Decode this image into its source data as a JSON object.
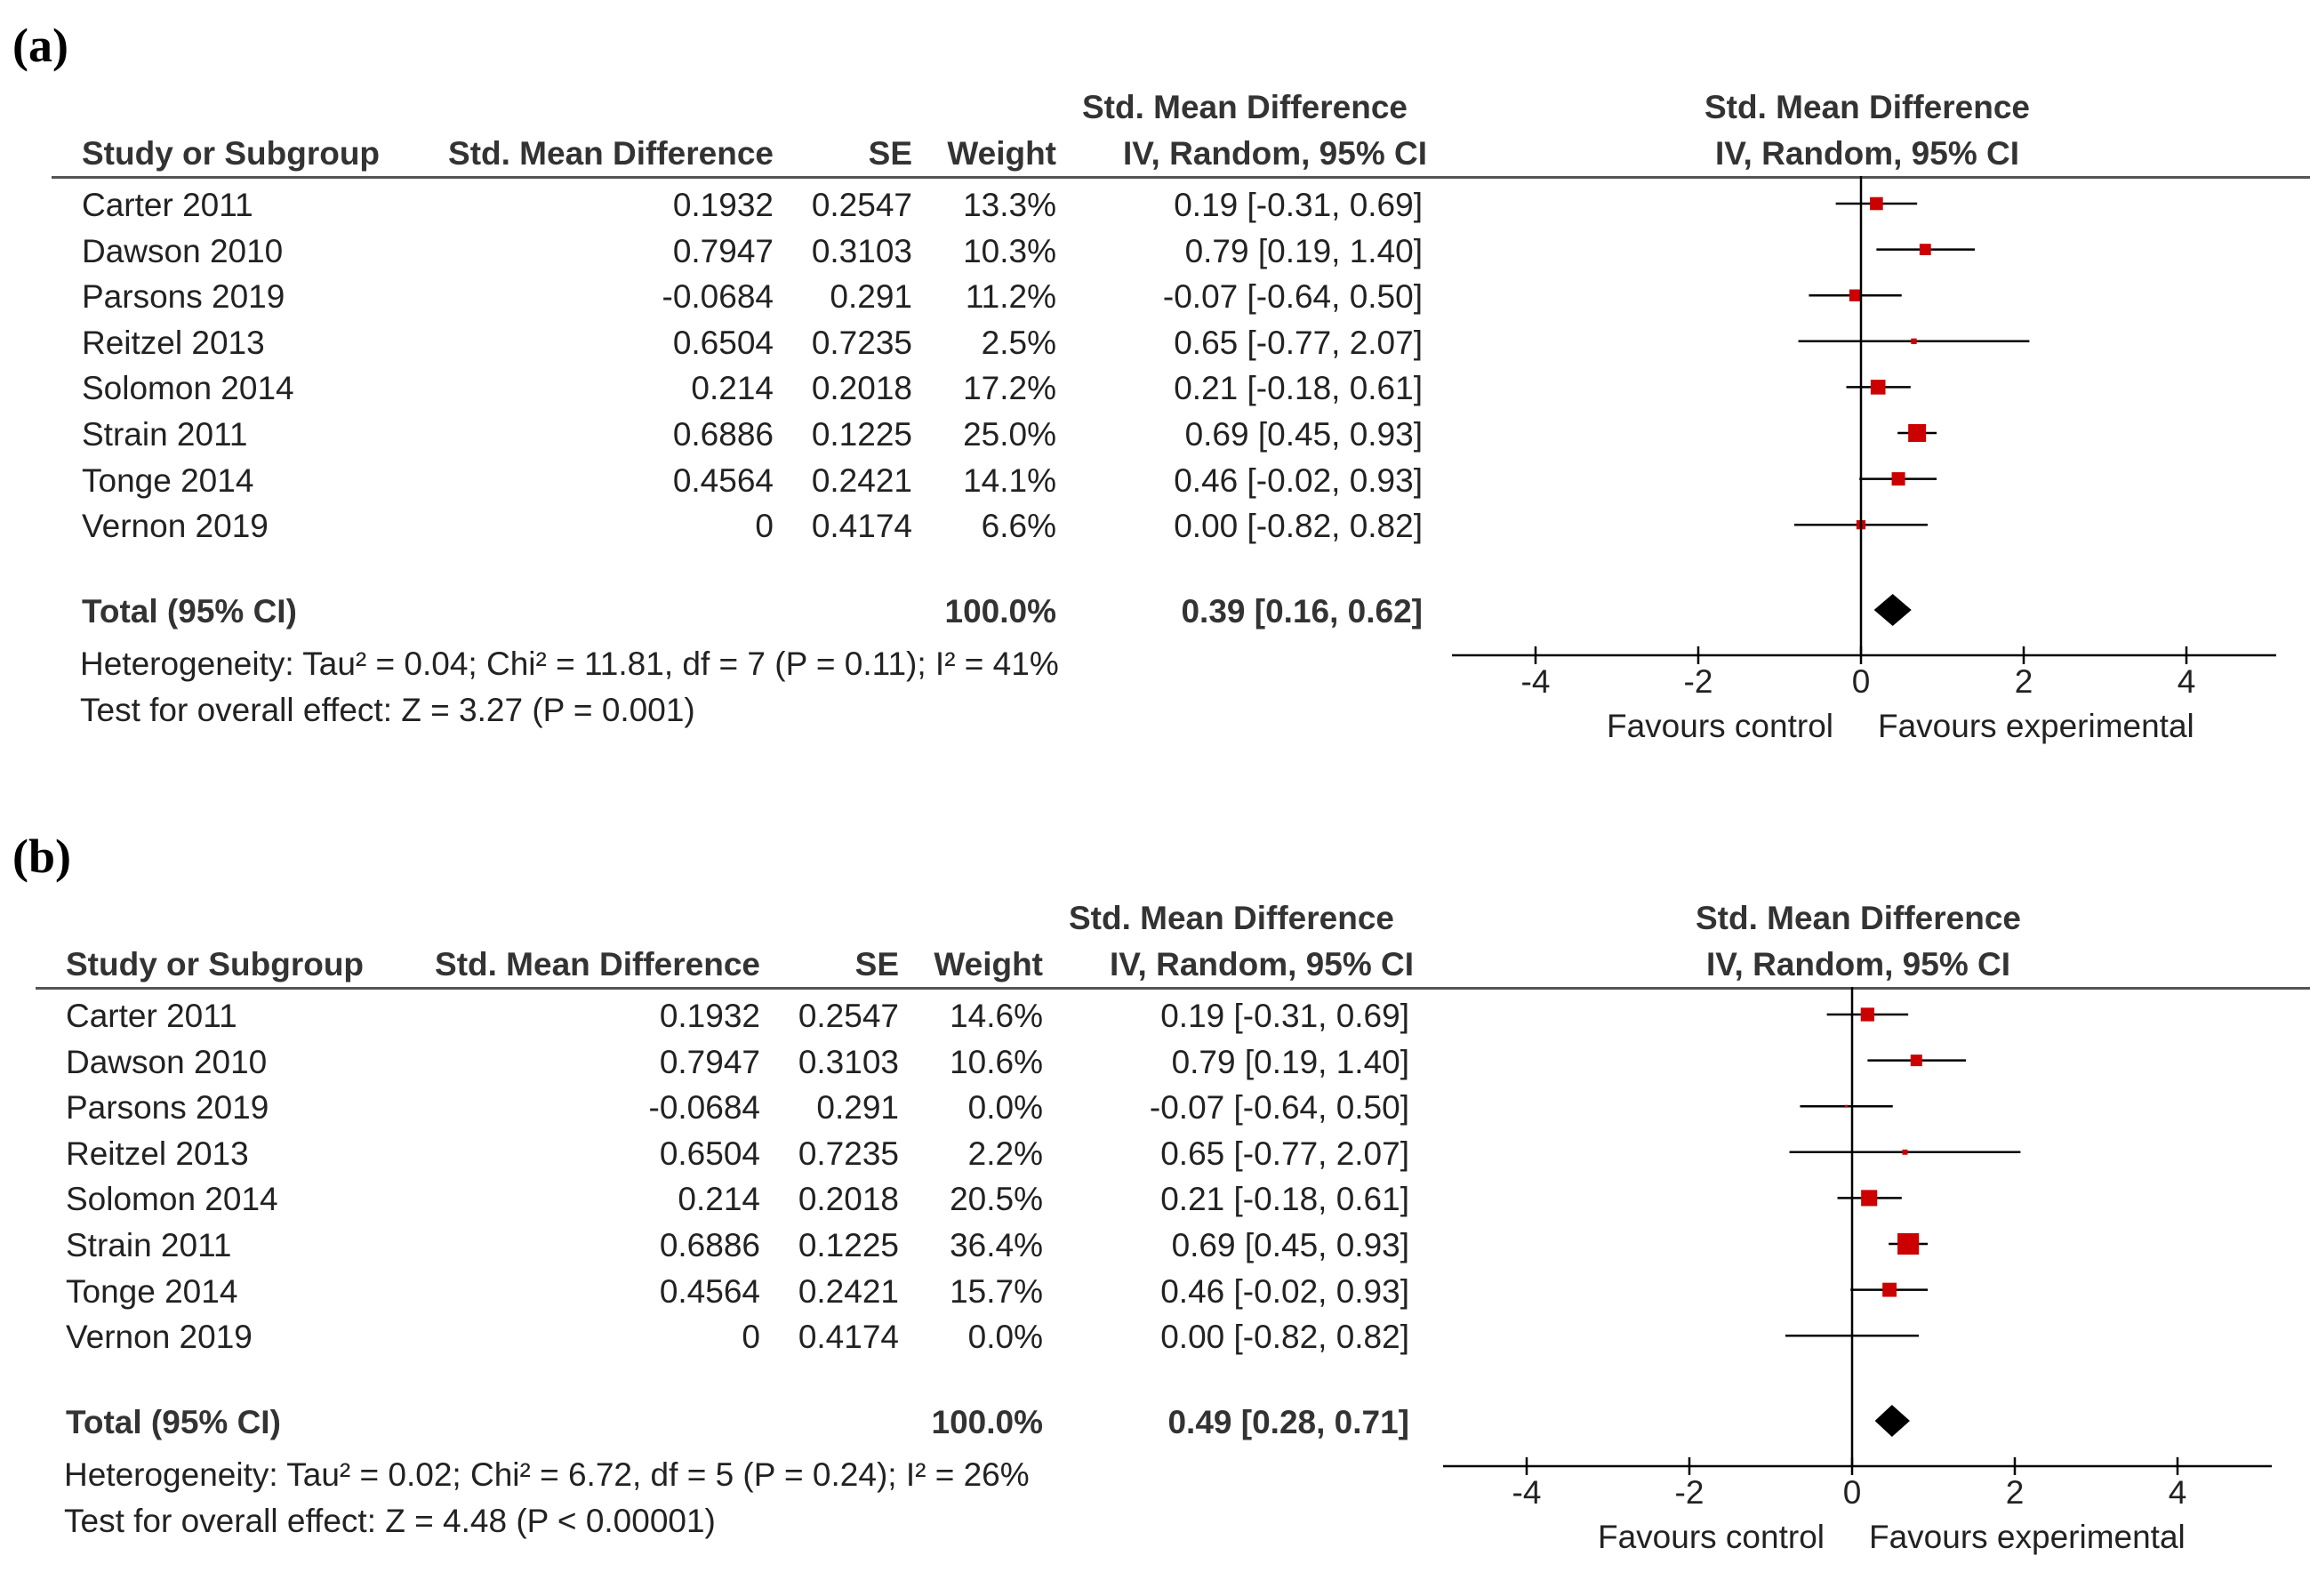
{
  "columns": {
    "study": "Study or Subgroup",
    "smd": "Std. Mean Difference",
    "se": "SE",
    "weight": "Weight",
    "ci_top": "Std. Mean Difference",
    "ci_bottom": "IV, Random, 95% CI",
    "plot_top": "Std. Mean Difference",
    "plot_bottom": "IV, Random, 95% CI"
  },
  "colors": {
    "marker": "#cc0000",
    "diamond": "#000000",
    "line": "#555555"
  },
  "chart_data": [
    {
      "type": "forest",
      "panel_label": "(a)",
      "xlim": [
        -5,
        5
      ],
      "ticks": [
        -4,
        -2,
        0,
        2,
        4
      ],
      "tick_labels": [
        "-4",
        "-2",
        "0",
        "2",
        "4"
      ],
      "xlabel_left": "Favours control",
      "xlabel_right": "Favours experimental",
      "studies": [
        {
          "name": "Carter 2011",
          "smd": "0.1932",
          "se": "0.2547",
          "weight": "13.3%",
          "ci": "0.19 [-0.31, 0.69]",
          "est": 0.19,
          "lo": -0.31,
          "hi": 0.69,
          "w": 13.3
        },
        {
          "name": "Dawson 2010",
          "smd": "0.7947",
          "se": "0.3103",
          "weight": "10.3%",
          "ci": "0.79 [0.19, 1.40]",
          "est": 0.79,
          "lo": 0.19,
          "hi": 1.4,
          "w": 10.3
        },
        {
          "name": "Parsons 2019",
          "smd": "-0.0684",
          "se": "0.291",
          "weight": "11.2%",
          "ci": "-0.07 [-0.64, 0.50]",
          "est": -0.07,
          "lo": -0.64,
          "hi": 0.5,
          "w": 11.2
        },
        {
          "name": "Reitzel 2013",
          "smd": "0.6504",
          "se": "0.7235",
          "weight": "2.5%",
          "ci": "0.65 [-0.77, 2.07]",
          "est": 0.65,
          "lo": -0.77,
          "hi": 2.07,
          "w": 2.5
        },
        {
          "name": "Solomon 2014",
          "smd": "0.214",
          "se": "0.2018",
          "weight": "17.2%",
          "ci": "0.21 [-0.18, 0.61]",
          "est": 0.21,
          "lo": -0.18,
          "hi": 0.61,
          "w": 17.2
        },
        {
          "name": "Strain 2011",
          "smd": "0.6886",
          "se": "0.1225",
          "weight": "25.0%",
          "ci": "0.69 [0.45, 0.93]",
          "est": 0.69,
          "lo": 0.45,
          "hi": 0.93,
          "w": 25.0
        },
        {
          "name": "Tonge 2014",
          "smd": "0.4564",
          "se": "0.2421",
          "weight": "14.1%",
          "ci": "0.46 [-0.02, 0.93]",
          "est": 0.46,
          "lo": -0.02,
          "hi": 0.93,
          "w": 14.1
        },
        {
          "name": "Vernon 2019",
          "smd": "0",
          "se": "0.4174",
          "weight": "6.6%",
          "ci": "0.00 [-0.82, 0.82]",
          "est": 0.0,
          "lo": -0.82,
          "hi": 0.82,
          "w": 6.6
        }
      ],
      "total": {
        "label": "Total (95% CI)",
        "weight": "100.0%",
        "ci": "0.39 [0.16, 0.62]",
        "est": 0.39,
        "lo": 0.16,
        "hi": 0.62
      },
      "heterogeneity": "Heterogeneity: Tau² = 0.04; Chi² = 11.81, df = 7 (P = 0.11); I² = 41%",
      "overall_effect": "Test for overall effect: Z = 3.27 (P = 0.001)"
    },
    {
      "type": "forest",
      "panel_label": "(b)",
      "xlim": [
        -5,
        5
      ],
      "ticks": [
        -4,
        -2,
        0,
        2,
        4
      ],
      "tick_labels": [
        "-4",
        "-2",
        "0",
        "2",
        "4"
      ],
      "xlabel_left": "Favours control",
      "xlabel_right": "Favours experimental",
      "studies": [
        {
          "name": "Carter 2011",
          "smd": "0.1932",
          "se": "0.2547",
          "weight": "14.6%",
          "ci": "0.19 [-0.31, 0.69]",
          "est": 0.19,
          "lo": -0.31,
          "hi": 0.69,
          "w": 14.6
        },
        {
          "name": "Dawson 2010",
          "smd": "0.7947",
          "se": "0.3103",
          "weight": "10.6%",
          "ci": "0.79 [0.19, 1.40]",
          "est": 0.79,
          "lo": 0.19,
          "hi": 1.4,
          "w": 10.6
        },
        {
          "name": "Parsons 2019",
          "smd": "-0.0684",
          "se": "0.291",
          "weight": "0.0%",
          "ci": "-0.07 [-0.64, 0.50]",
          "est": -0.07,
          "lo": -0.64,
          "hi": 0.5,
          "w": 0.0
        },
        {
          "name": "Reitzel 2013",
          "smd": "0.6504",
          "se": "0.7235",
          "weight": "2.2%",
          "ci": "0.65 [-0.77, 2.07]",
          "est": 0.65,
          "lo": -0.77,
          "hi": 2.07,
          "w": 2.2
        },
        {
          "name": "Solomon 2014",
          "smd": "0.214",
          "se": "0.2018",
          "weight": "20.5%",
          "ci": "0.21 [-0.18, 0.61]",
          "est": 0.21,
          "lo": -0.18,
          "hi": 0.61,
          "w": 20.5
        },
        {
          "name": "Strain 2011",
          "smd": "0.6886",
          "se": "0.1225",
          "weight": "36.4%",
          "ci": "0.69 [0.45, 0.93]",
          "est": 0.69,
          "lo": 0.45,
          "hi": 0.93,
          "w": 36.4
        },
        {
          "name": "Tonge 2014",
          "smd": "0.4564",
          "se": "0.2421",
          "weight": "15.7%",
          "ci": "0.46 [-0.02, 0.93]",
          "est": 0.46,
          "lo": -0.02,
          "hi": 0.93,
          "w": 15.7
        },
        {
          "name": "Vernon 2019",
          "smd": "0",
          "se": "0.4174",
          "weight": "0.0%",
          "ci": "0.00 [-0.82, 0.82]",
          "est": 0.0,
          "lo": -0.82,
          "hi": 0.82,
          "w": 0.0
        }
      ],
      "total": {
        "label": "Total (95% CI)",
        "weight": "100.0%",
        "ci": "0.49 [0.28, 0.71]",
        "est": 0.49,
        "lo": 0.28,
        "hi": 0.71
      },
      "heterogeneity": "Heterogeneity: Tau² = 0.02; Chi² = 6.72, df = 5 (P = 0.24); I² = 26%",
      "overall_effect": "Test for overall effect: Z = 4.48 (P < 0.00001)"
    }
  ]
}
